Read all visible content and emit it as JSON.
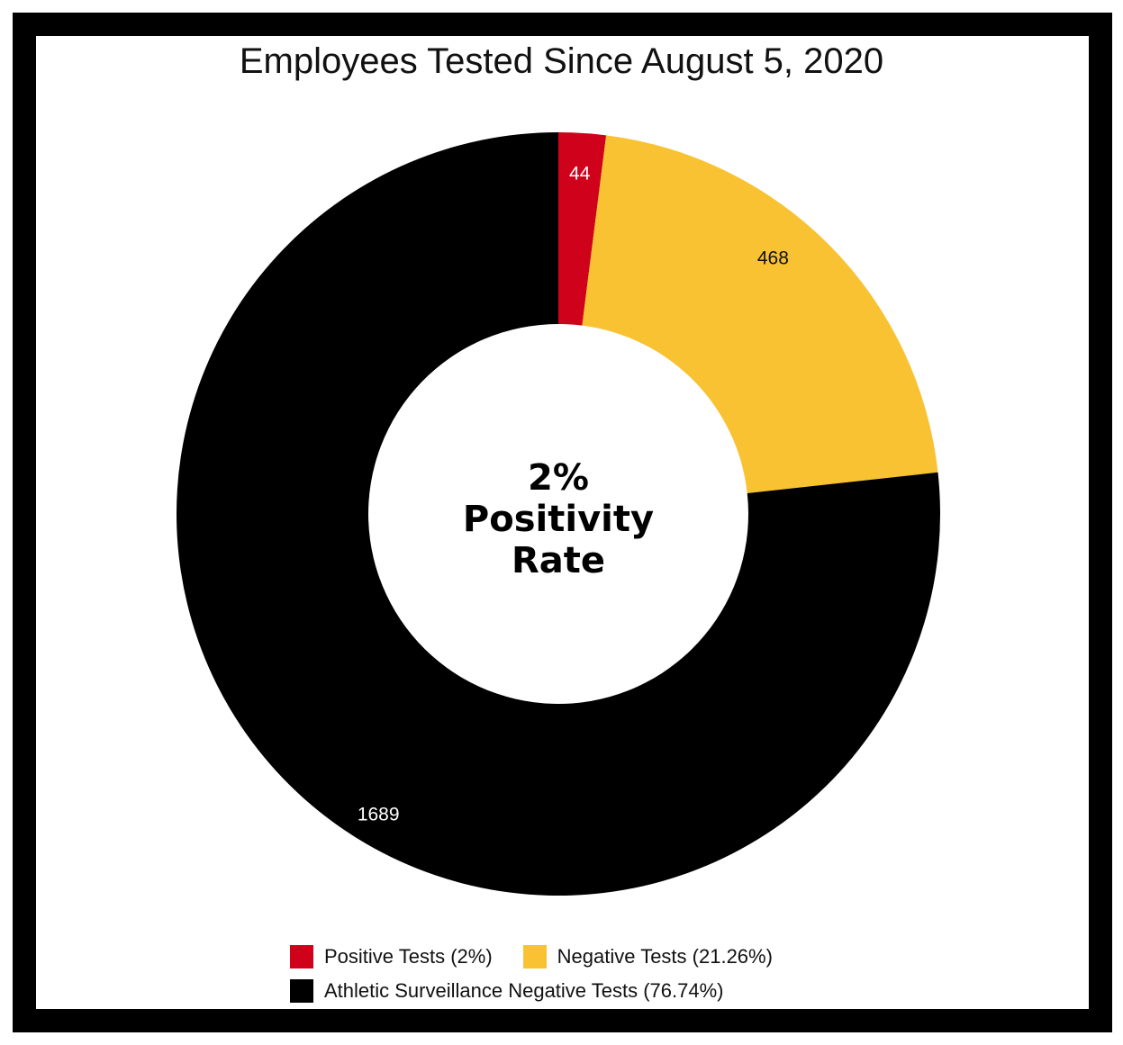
{
  "chart_data": {
    "type": "pie",
    "title": "Employees Tested Since August 5, 2020",
    "center_label": [
      "2%",
      "Positivity",
      "Rate"
    ],
    "slices": [
      {
        "label": "Positive Tests (2%)",
        "value": 44,
        "data_label": "44",
        "color": "#d0021b",
        "label_color": "#ffffff"
      },
      {
        "label": "Negative Tests (21.26%)",
        "value": 468,
        "data_label": "468",
        "color": "#f8c232",
        "label_color": "#111111"
      },
      {
        "label": "Athletic Surveillance Negative Tests (76.74%)",
        "value": 1689,
        "data_label": "1689",
        "color": "#000000",
        "label_color": "#ffffff"
      }
    ],
    "legend_position": "bottom"
  }
}
